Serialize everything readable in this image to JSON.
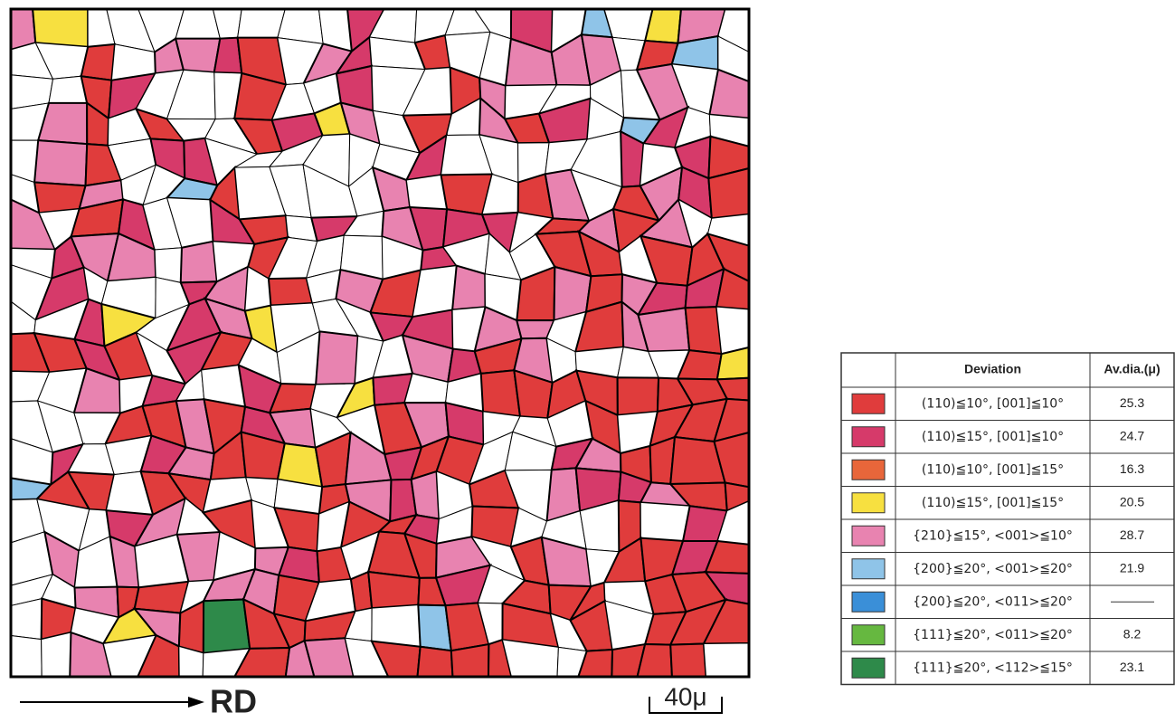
{
  "figure": {
    "axis_label": "RD",
    "scale_label": "40μ",
    "legend": {
      "header": {
        "deviation": "Deviation",
        "diameter": "Av.dia.(μ)"
      },
      "rows": [
        {
          "color": "#e03c3c",
          "deviation": "(110)≦10°, [001]≦10°",
          "diameter": 25.3
        },
        {
          "color": "#d63a6a",
          "deviation": "(110)≦15°, [001]≦10°",
          "diameter": 24.7
        },
        {
          "color": "#e8663a",
          "deviation": "(110)≦10°, [001]≦15°",
          "diameter": 16.3
        },
        {
          "color": "#f7e040",
          "deviation": "(110)≦15°, [001]≦15°",
          "diameter": 20.5
        },
        {
          "color": "#e883b0",
          "deviation": "{210}≦15°, <001>≦10°",
          "diameter": 28.7
        },
        {
          "color": "#8fc4e8",
          "deviation": "{200}≦20°, <001>≦20°",
          "diameter": 21.9
        },
        {
          "color": "#3a8fd8",
          "deviation": "{200}≦20°, <011>≦20°",
          "diameter": null
        },
        {
          "color": "#66b840",
          "deviation": "{111}≦20°, <011>≦20°",
          "diameter": 8.2
        },
        {
          "color": "#2e8a4a",
          "deviation": "{111}≦20°, <112>≦15°",
          "diameter": 23.1
        }
      ]
    }
  }
}
